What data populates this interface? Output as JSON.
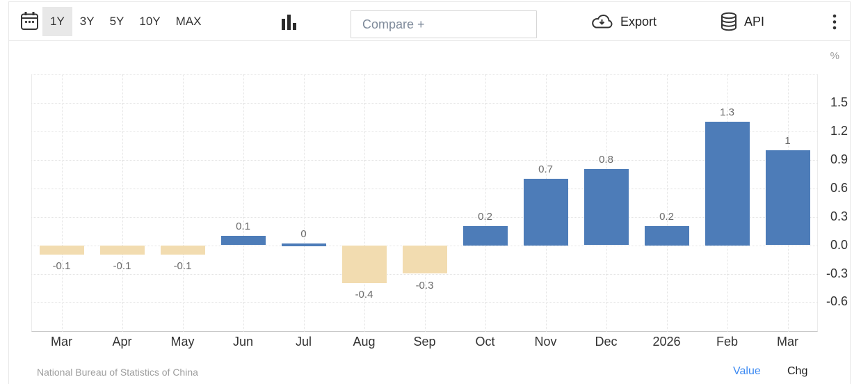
{
  "toolbar": {
    "ranges": [
      {
        "label": "1Y",
        "active": true
      },
      {
        "label": "3Y",
        "active": false
      },
      {
        "label": "5Y",
        "active": false
      },
      {
        "label": "10Y",
        "active": false
      },
      {
        "label": "MAX",
        "active": false
      }
    ],
    "compare_placeholder": "Compare +",
    "export_label": "Export",
    "api_label": "API"
  },
  "chart_data": {
    "type": "bar",
    "title": "",
    "unit": "%",
    "categories": [
      "Mar",
      "Apr",
      "May",
      "Jun",
      "Jul",
      "Aug",
      "Sep",
      "Oct",
      "Nov",
      "Dec",
      "2026",
      "Feb",
      "Mar"
    ],
    "values": [
      -0.1,
      -0.1,
      -0.1,
      0.1,
      0,
      -0.4,
      -0.3,
      0.2,
      0.7,
      0.8,
      0.2,
      1.3,
      1
    ],
    "value_labels": [
      "-0.1",
      "-0.1",
      "-0.1",
      "0.1",
      "0",
      "-0.4",
      "-0.3",
      "0.2",
      "0.7",
      "0.8",
      "0.2",
      "1.3",
      "1"
    ],
    "y_ticks": [
      "1.5",
      "1.2",
      "0.9",
      "0.6",
      "0.3",
      "0.0",
      "-0.3",
      "-0.6"
    ],
    "y_tick_values": [
      1.5,
      1.2,
      0.9,
      0.6,
      0.3,
      0.0,
      -0.3,
      -0.6
    ],
    "ylim": [
      -0.912,
      1.8
    ],
    "grid": true,
    "legend_position": "none",
    "positive_color": "#4d7cb8",
    "negative_color": "#f2dcb0"
  },
  "footer": {
    "source": "National Bureau of Statistics of China",
    "value_label": "Value",
    "chg_label": "Chg"
  }
}
